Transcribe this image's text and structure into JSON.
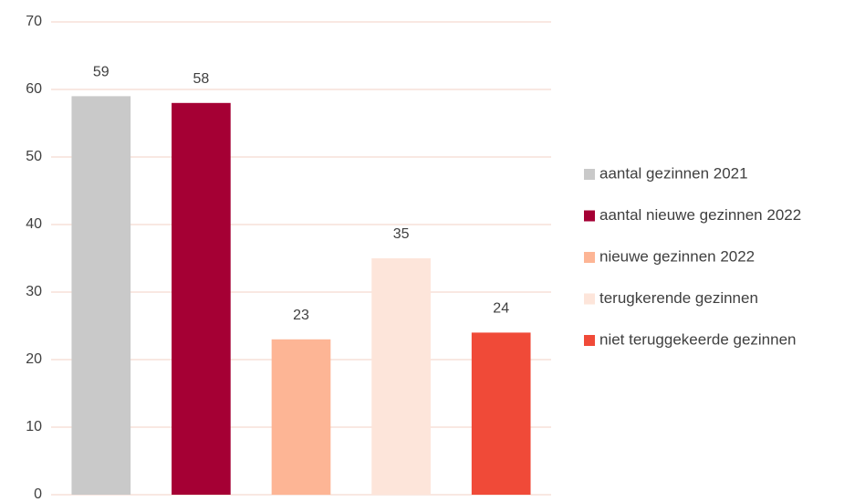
{
  "chart_data": {
    "type": "bar",
    "series": [
      {
        "name": "aantal gezinnen 2021",
        "color": "#c9c9c9",
        "values": [
          59
        ]
      },
      {
        "name": "aantal nieuwe gezinnen 2022",
        "color": "#a50034",
        "values": [
          58
        ]
      },
      {
        "name": "nieuwe gezinnen 2022",
        "color": "#fdb595",
        "values": [
          23
        ]
      },
      {
        "name": "terugkerende gezinnen",
        "color": "#fde5da",
        "values": [
          35
        ]
      },
      {
        "name": "niet teruggekeerde gezinnen",
        "color": "#f04a38",
        "values": [
          24
        ]
      }
    ],
    "ylim": [
      0,
      70
    ],
    "yticks": [
      0,
      10,
      20,
      30,
      40,
      50,
      60,
      70
    ],
    "grid": true,
    "legend": "right"
  }
}
